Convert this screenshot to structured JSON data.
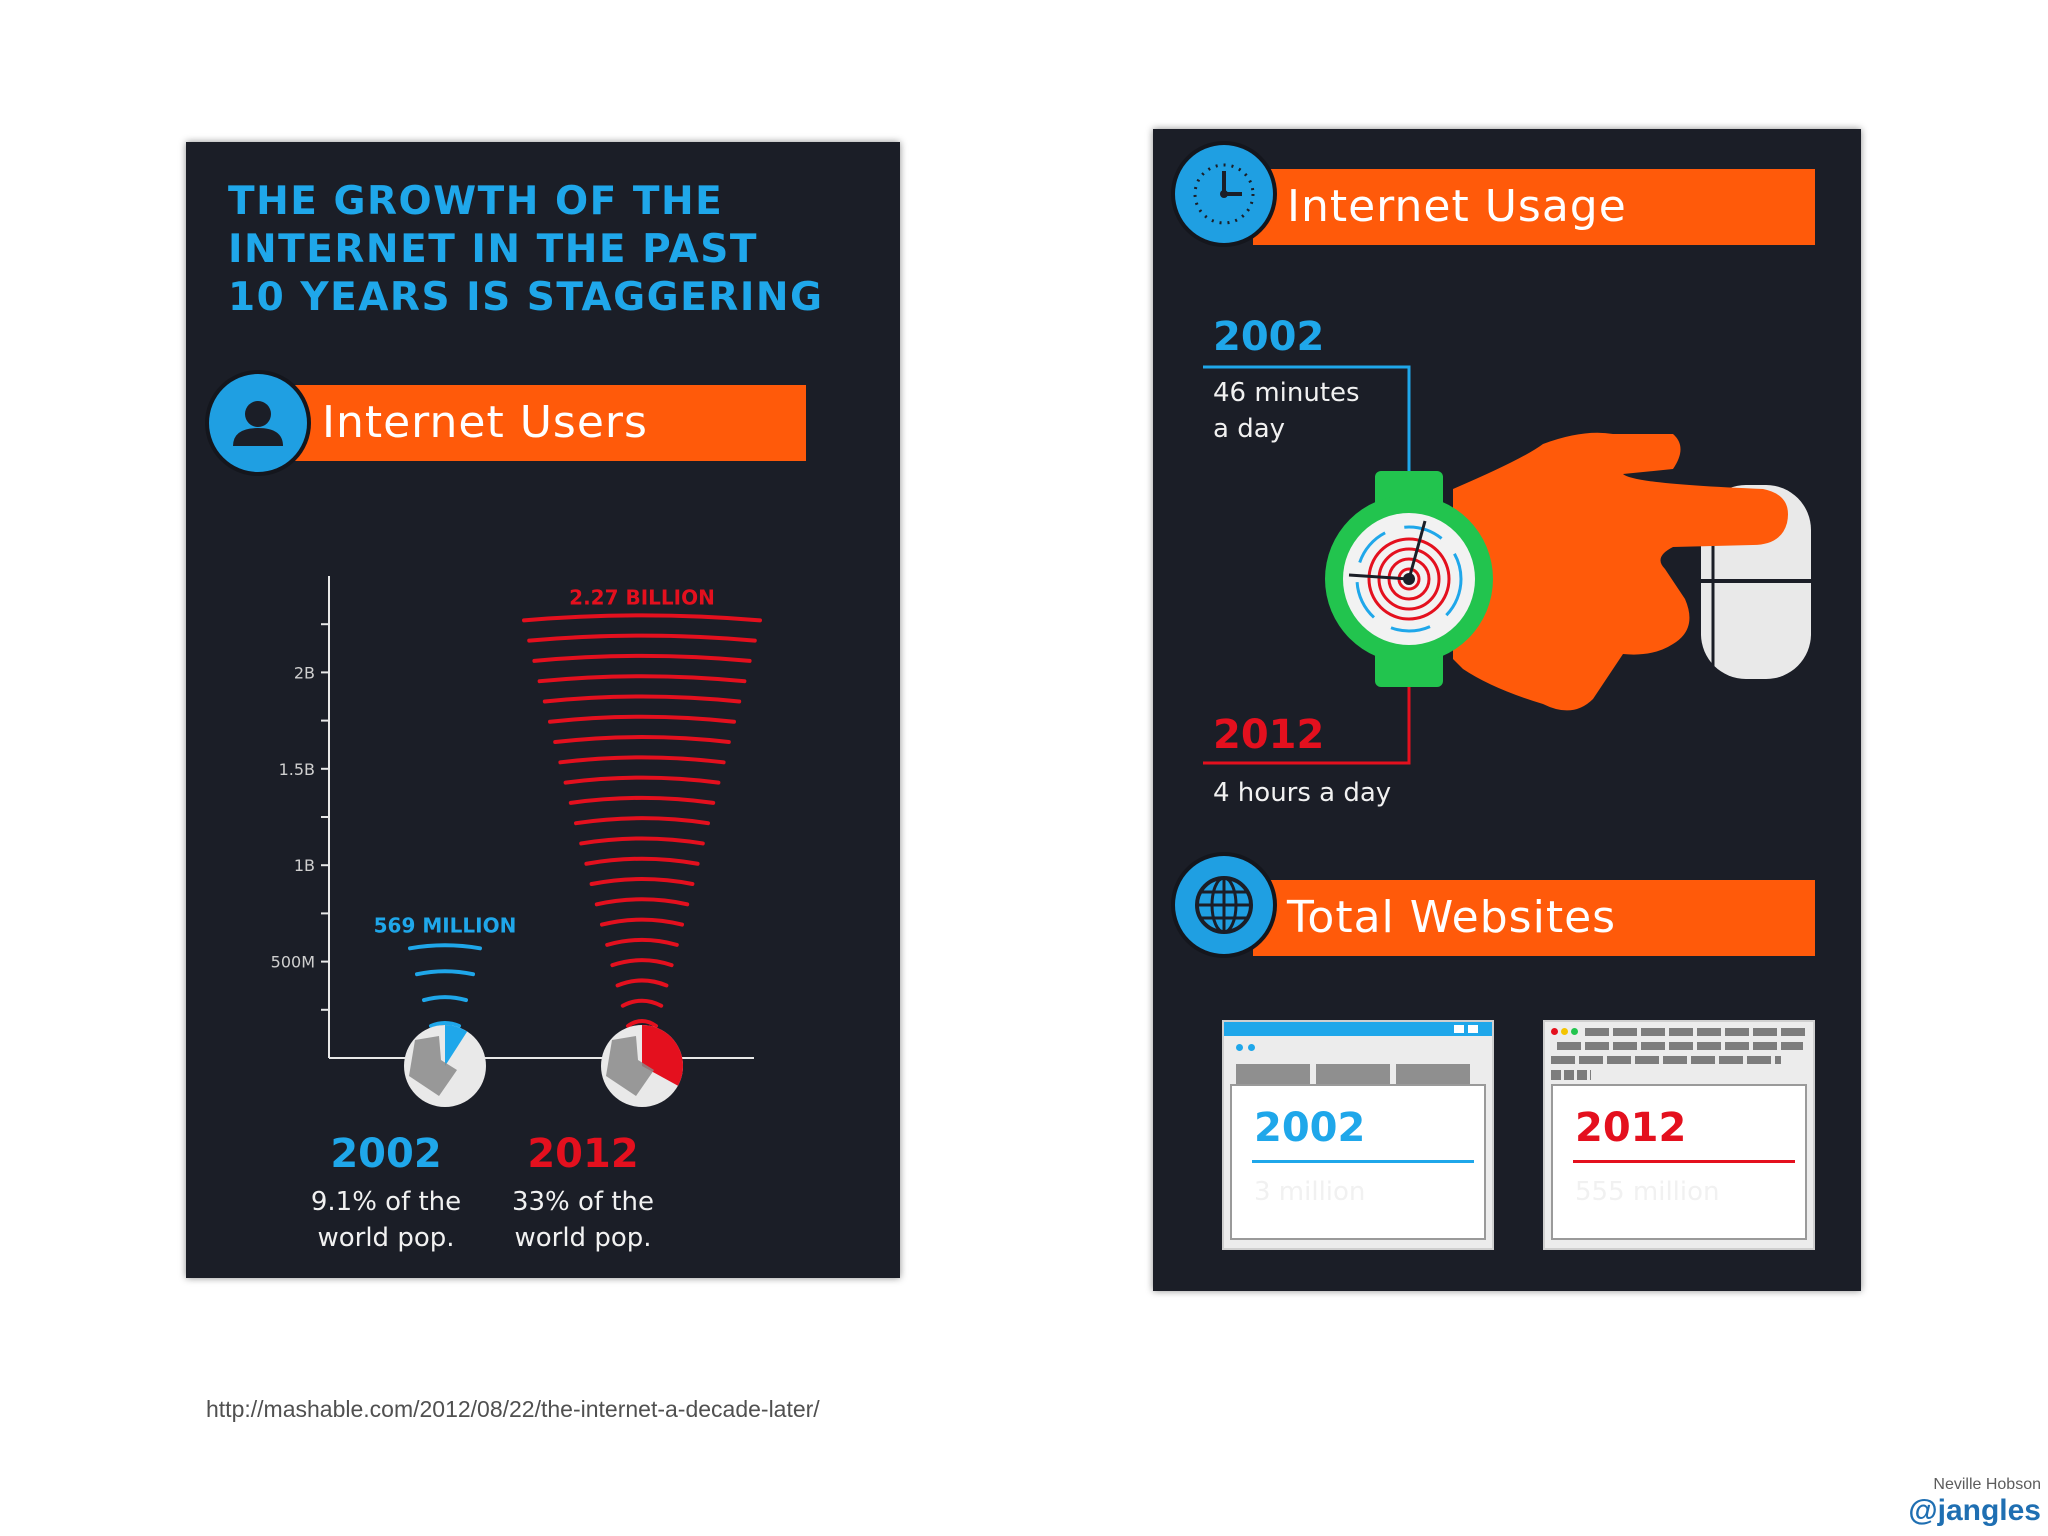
{
  "colors": {
    "panel_bg": "#1b1e27",
    "accent_blue": "#1fa7ea",
    "accent_orange": "#ff5a0a",
    "accent_red": "#e4101e",
    "watch_green": "#22c44e"
  },
  "left_panel": {
    "headline": [
      "THE GROWTH OF THE",
      "INTERNET IN THE PAST",
      "10 YEARS IS STAGGERING"
    ],
    "section_title": "Internet Users",
    "section_icon": "user-icon"
  },
  "chart_data": {
    "type": "bar",
    "title": "Internet Users",
    "categories": [
      "2002",
      "2012"
    ],
    "values": [
      569000000,
      2270000000
    ],
    "value_labels": [
      "569 MILLION",
      "2.27 BILLION"
    ],
    "y_ticks": [
      "2B",
      "1.5B",
      "1B",
      "500M"
    ],
    "y_tick_values": [
      2000000000,
      1500000000,
      1000000000,
      500000000
    ],
    "ylim": [
      0,
      2500000000
    ],
    "share_of_world_population": [
      9.1,
      33
    ],
    "share_labels": [
      [
        "9.1% of the",
        "world pop."
      ],
      [
        "33% of the",
        "world pop."
      ]
    ],
    "series_colors": [
      "#1fa7ea",
      "#e4101e"
    ]
  },
  "usage": {
    "title": "Internet Usage",
    "icon": "clock-icon",
    "y2002": "2002",
    "text2002": [
      "46 minutes",
      "a day"
    ],
    "y2012": "2012",
    "text2012": "4 hours a day",
    "illustration": "wristwatch-hand-mouse-icon"
  },
  "websites": {
    "title": "Total Websites",
    "icon": "globe-icon",
    "y2002": "2002",
    "value2002": "3 million",
    "y2012": "2012",
    "value2012": "555 million"
  },
  "footer": {
    "source_url": "http://mashable.com/2012/08/22/the-internet-a-decade-later/",
    "author": "Neville Hobson",
    "handle": "@jangles"
  }
}
